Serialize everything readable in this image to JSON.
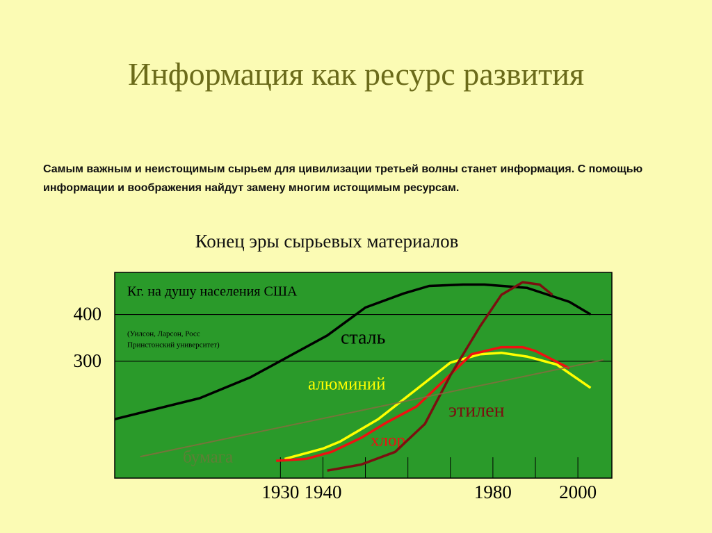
{
  "title": "Информация как ресурс развития",
  "text": "Самым важным и неистощимым сырьем для цивилизации третьей волны станет информация. С помощью информации и воображения найдут замену многим истощимым ресурсам.",
  "chart_data": {
    "type": "line",
    "title": "Конец эры сырьевых материалов",
    "y_label": "Кг. на душу населения США",
    "source": [
      "(Уилсон, Ларсон, Росс",
      "Принстонский университет)"
    ],
    "xlim": [
      1891,
      2008
    ],
    "ylim": [
      50,
      490
    ],
    "xticks": [
      1930,
      1940,
      1980,
      2000
    ],
    "xminorticks": [
      1950,
      1960,
      1970,
      1990
    ],
    "yticks": [
      300,
      400
    ],
    "grid": true,
    "background": "#2a9a2a",
    "series": [
      {
        "name": "сталь",
        "color": "#000000",
        "x": [
          1891,
          1911,
          1923,
          1941,
          1950,
          1959,
          1965,
          1973,
          1978,
          1988,
          1998,
          2003
        ],
        "values": [
          176,
          221,
          266,
          355,
          415,
          445,
          461,
          464,
          464,
          457,
          427,
          400
        ]
      },
      {
        "name": "алюминий",
        "color": "#ffff00",
        "x": [
          1931,
          1940,
          1944,
          1953,
          1962,
          1970,
          1977,
          1982,
          1988,
          1995,
          2003
        ],
        "values": [
          91,
          113,
          128,
          176,
          240,
          297,
          315,
          318,
          310,
          293,
          243
        ]
      },
      {
        "name": "хлор",
        "color": "#ee1111",
        "x": [
          1929,
          1936,
          1942,
          1949,
          1955,
          1962,
          1969,
          1975,
          1982,
          1987,
          1990,
          1998
        ],
        "values": [
          87,
          91,
          106,
          136,
          169,
          203,
          263,
          315,
          330,
          330,
          322,
          285
        ]
      },
      {
        "name": "этилен",
        "color": "#7a1010",
        "x": [
          1941,
          1949,
          1957,
          1964,
          1970,
          1977,
          1982,
          1987,
          1991,
          1994
        ],
        "values": [
          66,
          79,
          106,
          166,
          270,
          375,
          442,
          469,
          464,
          442
        ]
      },
      {
        "name": "бумага",
        "color": "#8a6a40",
        "x": [
          1897,
          2006
        ],
        "values": [
          96,
          303
        ]
      }
    ]
  }
}
